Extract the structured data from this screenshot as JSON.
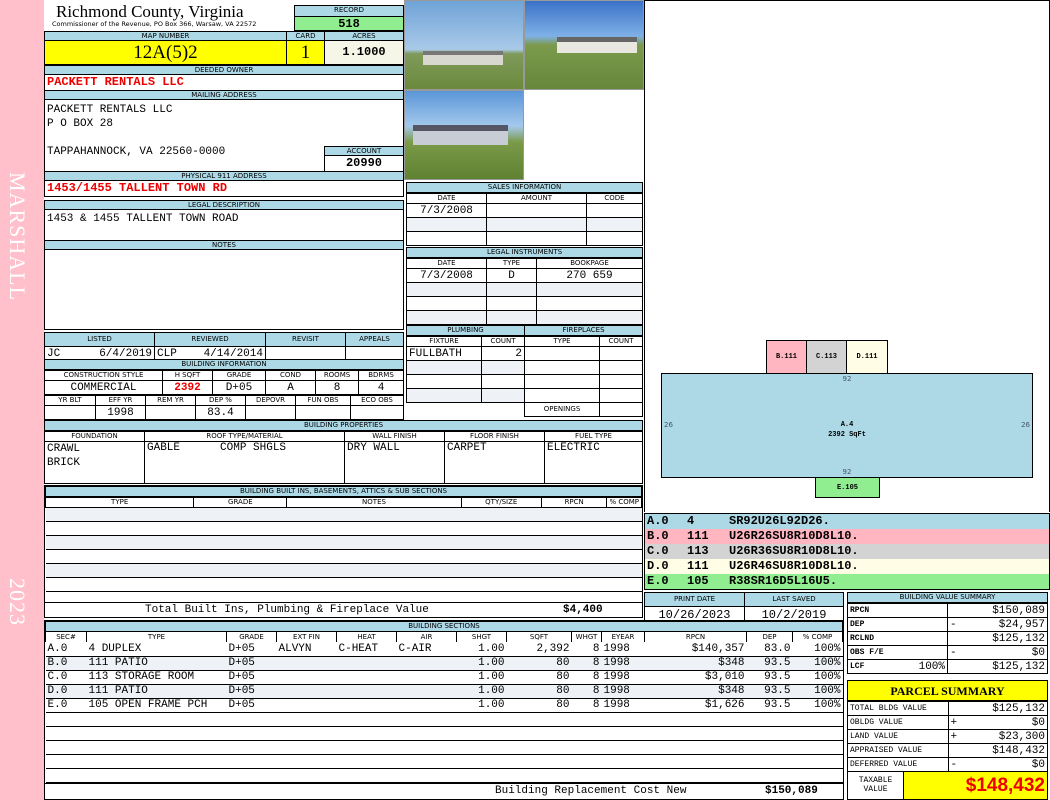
{
  "sidebar": {
    "district": "MARSHALL",
    "year": "2023"
  },
  "header": {
    "county": "Richmond County, Virginia",
    "office": "Commissioner of the Revenue, PO Box 366, Warsaw, VA 22572",
    "record_label": "RECORD",
    "record": "518"
  },
  "parcel": {
    "map_label": "MAP NUMBER",
    "map": "12A(5)2",
    "card_label": "CARD",
    "card": "1",
    "acres_label": "ACRES",
    "acres": "1.1000"
  },
  "owner": {
    "label": "DEEDED OWNER",
    "name": "PACKETT RENTALS LLC"
  },
  "mailing": {
    "label": "MAILING ADDRESS",
    "line1": "PACKETT RENTALS LLC",
    "line2": "P O BOX 28",
    "line3": "TAPPAHANNOCK, VA 22560-0000"
  },
  "account": {
    "label": "ACCOUNT",
    "value": "20990"
  },
  "physical": {
    "label": "PHYSICAL 911 ADDRESS",
    "value": "1453/1455 TALLENT TOWN RD"
  },
  "legal": {
    "label": "LEGAL DESCRIPTION",
    "value": "1453 & 1455 TALLENT TOWN ROAD"
  },
  "notes": {
    "label": "NOTES"
  },
  "listing": {
    "headers": [
      "LISTED",
      "REVIEWED",
      "REVISIT",
      "APPEALS"
    ],
    "listed_by": "JC",
    "listed_date": "6/4/2019",
    "reviewed_by": "CLP",
    "reviewed_date": "4/14/2014"
  },
  "building_info": {
    "label": "BUILDING INFORMATION",
    "headers1": [
      "CONSTRUCTION STYLE",
      "H SQFT",
      "GRADE",
      "COND",
      "ROOMS",
      "BDRMS"
    ],
    "values1": [
      "COMMERCIAL",
      "2392",
      "D+05",
      "A",
      "8",
      "4"
    ],
    "headers2": [
      "YR BLT",
      "EFF YR",
      "REM YR",
      "DEP %",
      "DEPOVR",
      "FUN OBS",
      "ECO OBS"
    ],
    "values2": [
      "",
      "1998",
      "",
      "83.4",
      "",
      "",
      ""
    ]
  },
  "sales": {
    "label": "SALES INFORMATION",
    "headers": [
      "DATE",
      "AMOUNT",
      "CODE"
    ],
    "rows": [
      [
        "7/3/2008",
        "",
        ""
      ],
      [
        "",
        "",
        ""
      ],
      [
        "",
        "",
        ""
      ]
    ]
  },
  "instruments": {
    "label": "LEGAL INSTRUMENTS",
    "headers": [
      "DATE",
      "TYPE",
      "BOOKPAGE"
    ],
    "rows": [
      [
        "7/3/2008",
        "D",
        "270 659"
      ],
      [
        "",
        "",
        ""
      ],
      [
        "",
        "",
        ""
      ],
      [
        "",
        "",
        ""
      ]
    ]
  },
  "plumbing": {
    "label": "PLUMBING",
    "headers": [
      "FIXTURE",
      "COUNT"
    ],
    "rows": [
      [
        "FULLBATH",
        "2"
      ],
      [
        "",
        ""
      ],
      [
        "",
        ""
      ],
      [
        "",
        ""
      ]
    ]
  },
  "fireplaces": {
    "label": "FIREPLACES",
    "headers": [
      "TYPE",
      "COUNT"
    ],
    "openings": "OPENINGS"
  },
  "properties": {
    "label": "BUILDING PROPERTIES",
    "headers": [
      "FOUNDATION",
      "ROOF TYPE/MATERIAL",
      "WALL FINISH",
      "FLOOR FINISH",
      "FUEL TYPE"
    ],
    "foundation1": "CRAWL",
    "foundation2": "BRICK",
    "roof_type": "GABLE",
    "roof_material": "COMP SHGLS",
    "wall": "DRY WALL",
    "floor": "CARPET",
    "fuel": "ELECTRIC"
  },
  "builtins": {
    "label": "BUILDING BUILT INS, BASEMENTS, ATTICS & SUB SECTIONS",
    "headers": [
      "TYPE",
      "GRADE",
      "NOTES",
      "QTY/SIZE",
      "RPCN",
      "% COMP"
    ],
    "total_label": "Total Built Ins, Plumbing & Fireplace Value",
    "total": "$4,400"
  },
  "sketch": {
    "main_label": "A.4",
    "main_area": "2392 SqFt",
    "dim_top": "92",
    "dim_bottom": "92",
    "dim_left": "26",
    "dim_right": "26",
    "b": "B.111",
    "c": "C.113",
    "d": "D.111",
    "e": "E.105",
    "colors": {
      "a": "#add8e6",
      "b": "#ffb6c1",
      "c": "#d3d3d3",
      "d": "#fffde6",
      "e": "#90ee90"
    },
    "legend": [
      [
        "A.0",
        "4",
        "SR92U26L92D26."
      ],
      [
        "B.0",
        "111",
        "U26R26SU8R10D8L10."
      ],
      [
        "C.0",
        "113",
        "U26R36SU8R10D8L10."
      ],
      [
        "D.0",
        "111",
        "U26R46SU8R10D8L10."
      ],
      [
        "E.0",
        "105",
        "R38SR16D5L16U5."
      ]
    ]
  },
  "dates": {
    "print_label": "PRINT DATE",
    "print": "10/26/2023",
    "saved_label": "LAST SAVED",
    "saved": "10/2/2019"
  },
  "sections": {
    "label": "BUILDING SECTIONS",
    "headers": [
      "SEC#",
      "TYPE",
      "GRADE",
      "EXT FIN",
      "HEAT",
      "AIR",
      "SHGT",
      "SQFT",
      "WHGT",
      "EYEAR",
      "RPCN",
      "DEP",
      "% COMP"
    ],
    "rows": [
      [
        "A.0",
        "   4 DUPLEX",
        "D+05",
        "ALVYN",
        "C-HEAT",
        "C-AIR",
        "1.00",
        "2,392",
        "8",
        "1998",
        "$140,357",
        "83.0",
        "100%"
      ],
      [
        "B.0",
        "111 PATIO",
        "D+05",
        "",
        "",
        "",
        "1.00",
        "80",
        "8",
        "1998",
        "$348",
        "93.5",
        "100%"
      ],
      [
        "C.0",
        "113 STORAGE ROOM",
        "D+05",
        "",
        "",
        "",
        "1.00",
        "80",
        "8",
        "1998",
        "$3,010",
        "93.5",
        "100%"
      ],
      [
        "D.0",
        "111 PATIO",
        "D+05",
        "",
        "",
        "",
        "1.00",
        "80",
        "8",
        "1998",
        "$348",
        "93.5",
        "100%"
      ],
      [
        "E.0",
        "105 OPEN FRAME PCH",
        "D+05",
        "",
        "",
        "",
        "1.00",
        "80",
        "8",
        "1998",
        "$1,626",
        "93.5",
        "100%"
      ]
    ],
    "total_label": "Building Replacement Cost New",
    "total": "$150,089"
  },
  "value_summary": {
    "label": "BUILDING VALUE SUMMARY",
    "rows": [
      [
        "RPCN",
        "",
        "",
        "$150,089"
      ],
      [
        "DEP",
        "",
        "-",
        "$24,957"
      ],
      [
        "RCLND",
        "",
        "",
        "$125,132"
      ],
      [
        "OBS F/E",
        "",
        "-",
        "$0"
      ],
      [
        "LCF",
        "100%",
        "",
        "$125,132"
      ]
    ]
  },
  "parcel_summary": {
    "label": "PARCEL SUMMARY",
    "rows": [
      [
        "TOTAL BLDG VALUE",
        "",
        "$125,132"
      ],
      [
        "OBLDG VALUE",
        "+",
        "$0"
      ],
      [
        "LAND VALUE",
        "+",
        "$23,300"
      ],
      [
        "APPRAISED VALUE",
        "",
        "$148,432"
      ],
      [
        "DEFERRED VALUE",
        "-",
        "$0"
      ]
    ],
    "taxable_label": "TAXABLE VALUE",
    "taxable": "$148,432"
  }
}
